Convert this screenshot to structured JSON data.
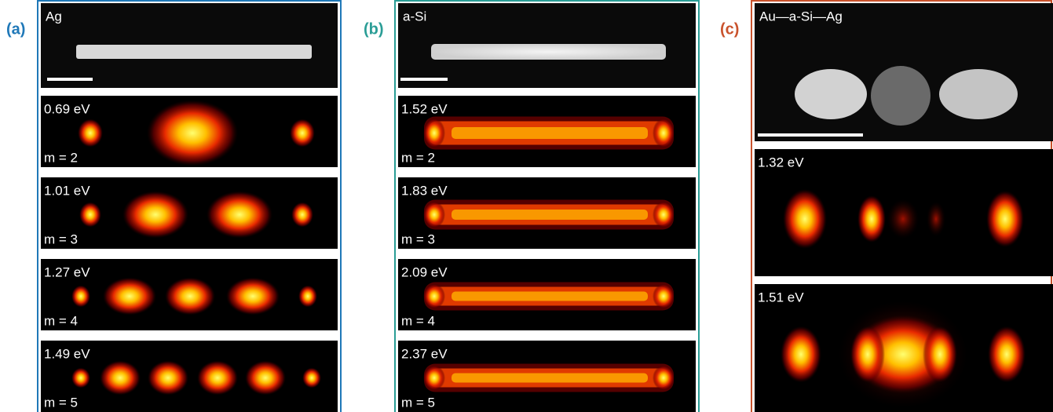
{
  "panels": [
    {
      "label": "(a)",
      "title": "Ag",
      "maps": [
        {
          "energy": "0.69 eV",
          "mode": "m = 2"
        },
        {
          "energy": "1.01 eV",
          "mode": "m = 3"
        },
        {
          "energy": "1.27 eV",
          "mode": "m = 4"
        },
        {
          "energy": "1.49 eV",
          "mode": "m = 5"
        }
      ]
    },
    {
      "label": "(b)",
      "title": "a-Si",
      "maps": [
        {
          "energy": "1.52 eV",
          "mode": "m = 2"
        },
        {
          "energy": "1.83 eV",
          "mode": "m = 3"
        },
        {
          "energy": "2.09 eV",
          "mode": "m = 4"
        },
        {
          "energy": "2.37 eV",
          "mode": "m = 5"
        }
      ]
    },
    {
      "label": "(c)",
      "title": "Au—a-Si—Ag",
      "maps": [
        {
          "energy": "1.32 eV"
        },
        {
          "energy": "1.51 eV"
        }
      ]
    }
  ]
}
